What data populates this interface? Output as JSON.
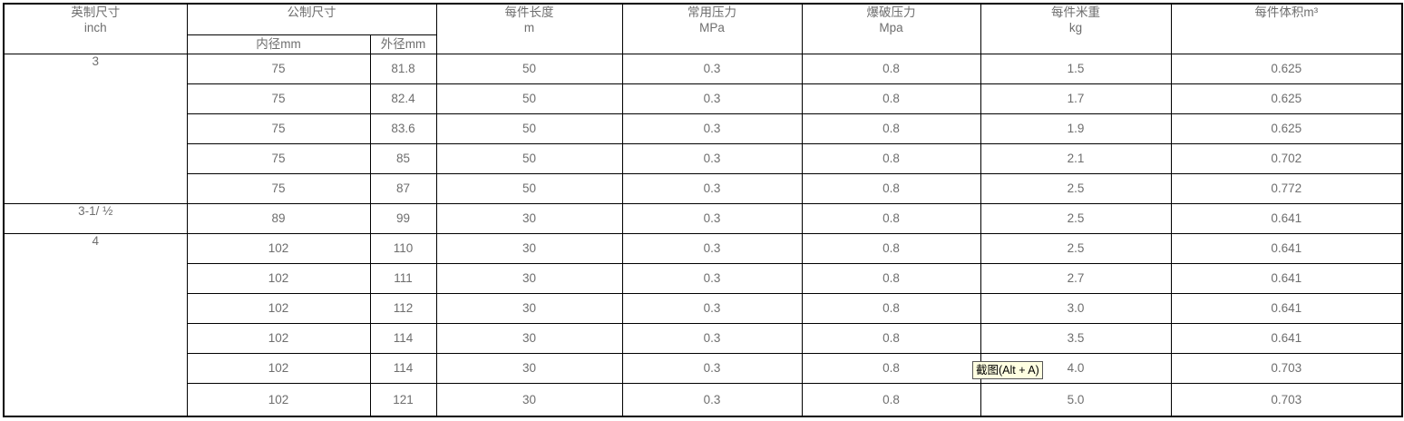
{
  "table": {
    "headers": {
      "inch_cn": "英制尺寸",
      "inch_sub": "inch",
      "metric_cn": "公制尺寸",
      "metric_inner": "内径mm",
      "metric_outer": "外径mm",
      "length_cn": "每件长度",
      "length_sub": "m",
      "working_cn": "常用压力",
      "working_sub": "MPa",
      "burst_cn": "爆破压力",
      "burst_sub": "Mpa",
      "weight_cn": "每件米重",
      "weight_sub": "kg",
      "volume_cn": "每件体积m³"
    },
    "rows": [
      {
        "inch": "3",
        "inch_rowspan": "5",
        "id": "75",
        "od": "81.8",
        "len": "50",
        "wp": "0.3",
        "bp": "0.8",
        "wt": "1.5",
        "vol": "0.625"
      },
      {
        "id": "75",
        "od": "82.4",
        "len": "50",
        "wp": "0.3",
        "bp": "0.8",
        "wt": "1.7",
        "vol": "0.625"
      },
      {
        "id": "75",
        "od": "83.6",
        "len": "50",
        "wp": "0.3",
        "bp": "0.8",
        "wt": "1.9",
        "vol": "0.625"
      },
      {
        "id": "75",
        "od": "85",
        "len": "50",
        "wp": "0.3",
        "bp": "0.8",
        "wt": "2.1",
        "vol": "0.702"
      },
      {
        "id": "75",
        "od": "87",
        "len": "50",
        "wp": "0.3",
        "bp": "0.8",
        "wt": "2.5",
        "vol": "0.772"
      },
      {
        "inch": "3-1/ ½",
        "inch_rowspan": "1",
        "id": "89",
        "od": "99",
        "len": "30",
        "wp": "0.3",
        "bp": "0.8",
        "wt": "2.5",
        "vol": "0.641"
      },
      {
        "inch": "4",
        "inch_rowspan": "6",
        "id": "102",
        "od": "110",
        "len": "30",
        "wp": "0.3",
        "bp": "0.8",
        "wt": "2.5",
        "vol": "0.641"
      },
      {
        "id": "102",
        "od": "111",
        "len": "30",
        "wp": "0.3",
        "bp": "0.8",
        "wt": "2.7",
        "vol": "0.641"
      },
      {
        "id": "102",
        "od": "112",
        "len": "30",
        "wp": "0.3",
        "bp": "0.8",
        "wt": "3.0",
        "vol": "0.641"
      },
      {
        "id": "102",
        "od": "114",
        "len": "30",
        "wp": "0.3",
        "bp": "0.8",
        "wt": "3.5",
        "vol": "0.641"
      },
      {
        "id": "102",
        "od": "114",
        "len": "30",
        "wp": "0.3",
        "bp": "0.8",
        "wt": "4.0",
        "vol": "0.703"
      },
      {
        "id": "102",
        "od": "121",
        "len": "30",
        "wp": "0.3",
        "bp": "0.8",
        "wt": "5.0",
        "vol": "0.703"
      }
    ]
  },
  "tooltip": {
    "label": "截图(Alt + A)",
    "background": "#FFFFE1"
  }
}
